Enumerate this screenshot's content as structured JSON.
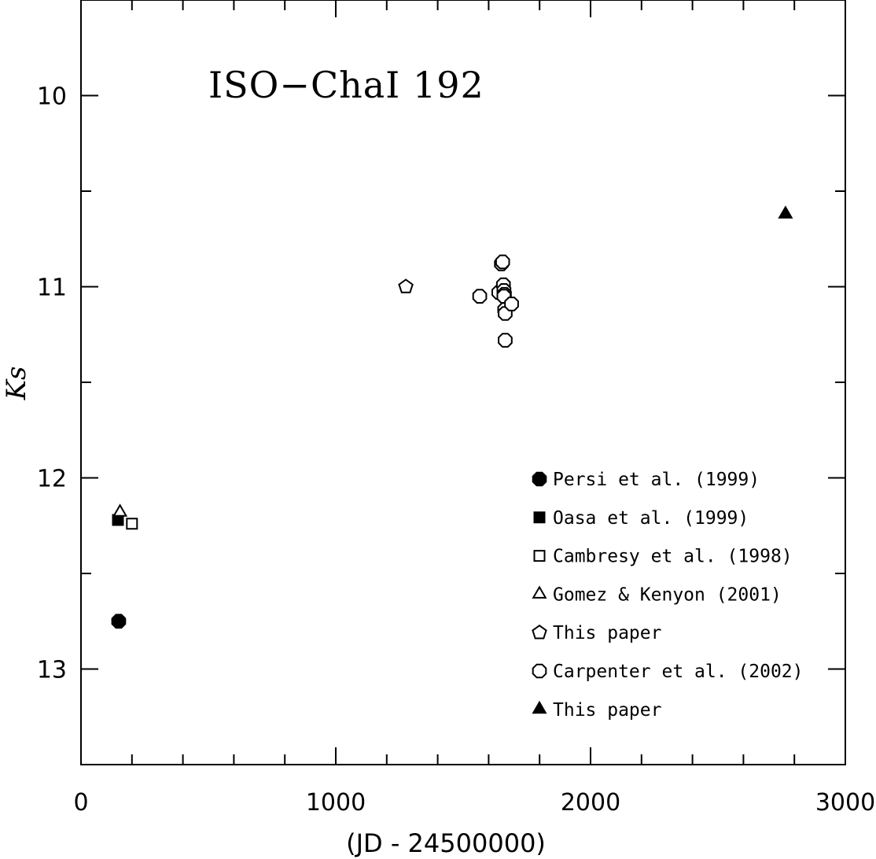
{
  "chart_data": {
    "type": "scatter",
    "annotation": "ISO−ChaI 192",
    "xlabel": "(JD - 24500000)",
    "ylabel": "Ks",
    "xlim": [
      0,
      3000
    ],
    "ylim": [
      13.5,
      9.5
    ],
    "y_inverted": true,
    "x_ticks": [
      0,
      1000,
      2000,
      3000
    ],
    "x_tick_labels": [
      "0",
      "1000",
      "2000",
      "3000"
    ],
    "y_ticks": [
      10,
      11,
      12,
      13
    ],
    "y_tick_labels": [
      "10",
      "11",
      "12",
      "13"
    ],
    "x_minor_step": 200,
    "y_minor_step": 0.5,
    "grid": false,
    "legend_position": "bottom-right",
    "series": [
      {
        "name": "Persi et al. (1999)",
        "marker": "filled-octagon",
        "points": [
          [
            148,
            12.75
          ]
        ]
      },
      {
        "name": "Oasa et al. (1999)",
        "marker": "filled-square",
        "points": [
          [
            145,
            12.22
          ]
        ]
      },
      {
        "name": "Cambresy et al. (1998)",
        "marker": "open-square",
        "points": [
          [
            200,
            12.24
          ]
        ]
      },
      {
        "name": "Gomez & Kenyon (2001)",
        "marker": "open-triangle",
        "points": [
          [
            153,
            12.18
          ]
        ]
      },
      {
        "name": "This paper",
        "marker": "open-pentagon",
        "points": [
          [
            1275,
            11.0
          ]
        ]
      },
      {
        "name": "Carpenter et al. (2002)",
        "marker": "open-octagon",
        "points": [
          [
            1565,
            11.05
          ],
          [
            1640,
            11.03
          ],
          [
            1650,
            10.88
          ],
          [
            1655,
            10.87
          ],
          [
            1658,
            10.99
          ],
          [
            1660,
            11.02
          ],
          [
            1662,
            11.04
          ],
          [
            1660,
            11.05
          ],
          [
            1663,
            11.12
          ],
          [
            1665,
            11.14
          ],
          [
            1690,
            11.09
          ],
          [
            1665,
            11.28
          ]
        ]
      },
      {
        "name": "This paper",
        "marker": "filled-triangle",
        "points": [
          [
            2765,
            10.62
          ]
        ]
      }
    ]
  }
}
